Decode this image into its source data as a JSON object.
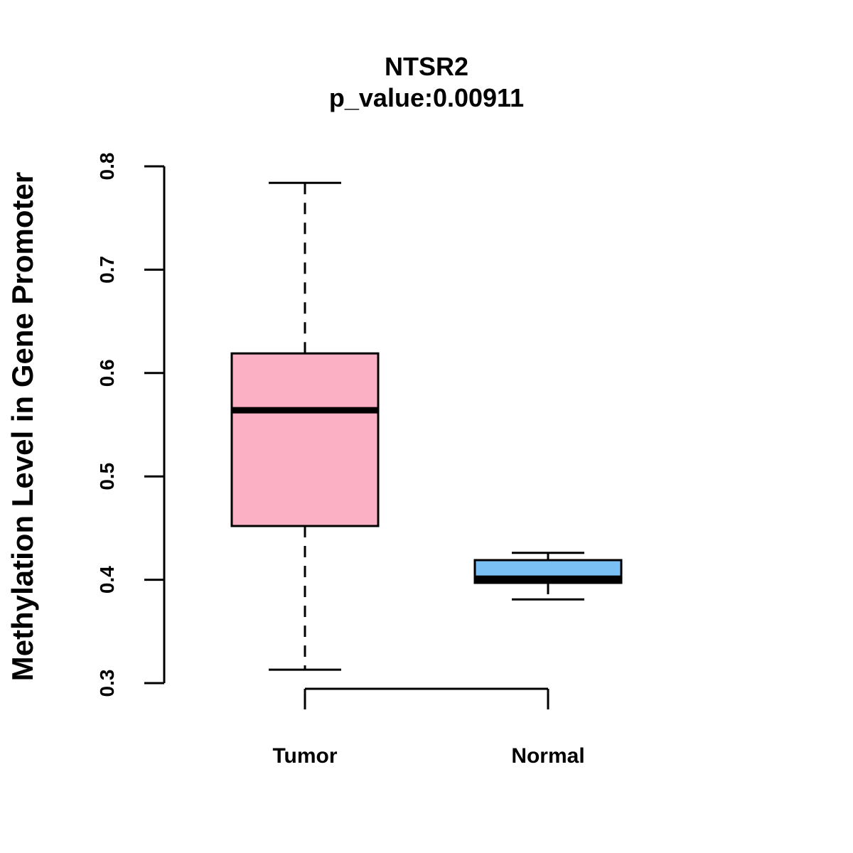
{
  "chart_data": {
    "type": "boxplot",
    "title": "NTSR2",
    "subtitle": "p_value:0.00911",
    "xlabel": "",
    "ylabel": "Methylation Level in Gene Promoter",
    "ylim": [
      0.3,
      0.8
    ],
    "yticks": [
      0.3,
      0.4,
      0.5,
      0.6,
      0.7,
      0.8
    ],
    "ytick_labels": [
      "0.3",
      "0.4",
      "0.5",
      "0.6",
      "0.7",
      "0.8"
    ],
    "categories": [
      "Tumor",
      "Normal"
    ],
    "boxes": [
      {
        "name": "Tumor",
        "min": 0.313,
        "q1": 0.452,
        "median": 0.564,
        "q3": 0.619,
        "max": 0.784,
        "color": "#FBB1C3"
      },
      {
        "name": "Normal",
        "min": 0.381,
        "q1": 0.397,
        "median": 0.401,
        "q3": 0.419,
        "max": 0.426,
        "color": "#7AC0F5"
      }
    ]
  }
}
